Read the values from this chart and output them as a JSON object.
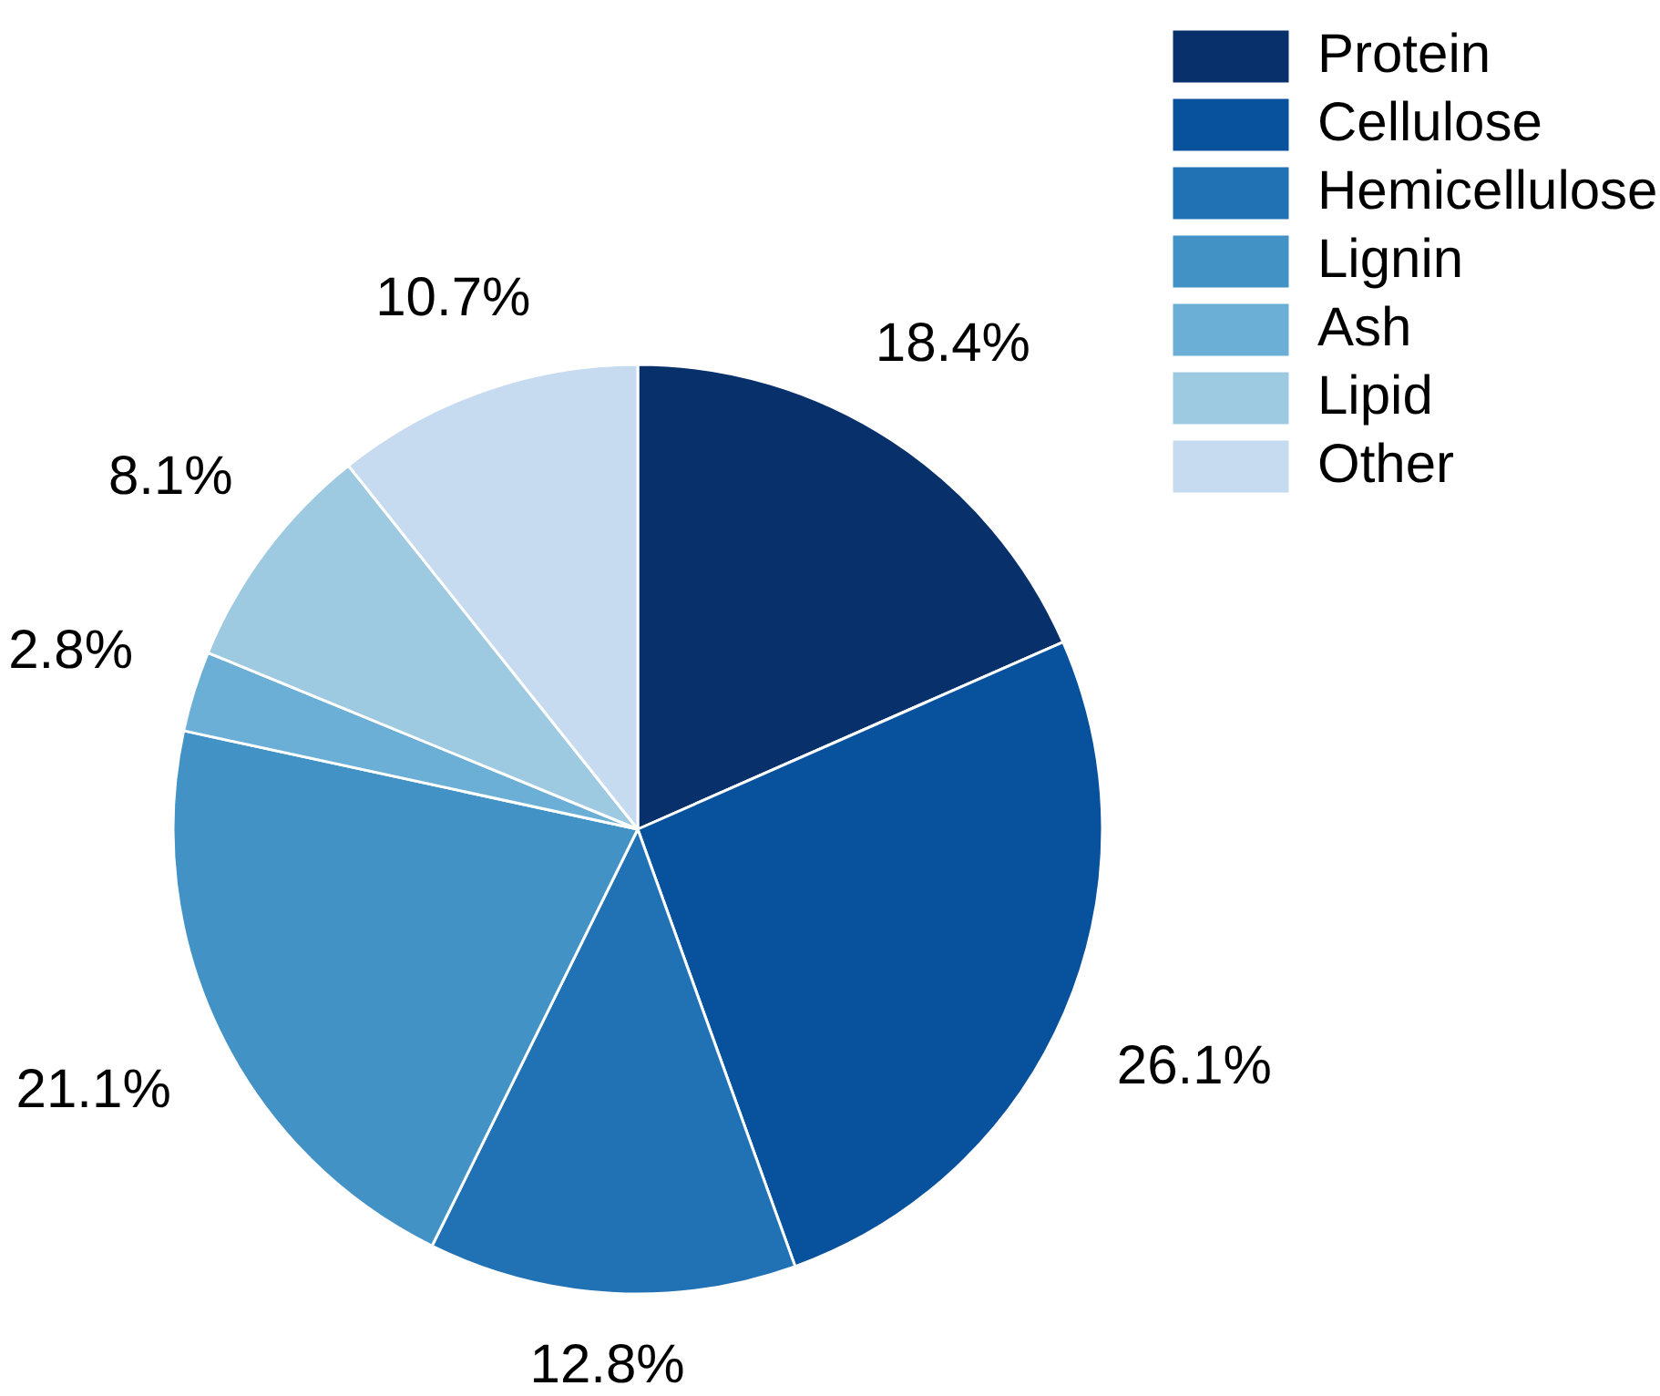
{
  "chart_data": {
    "type": "pie",
    "categories": [
      "Protein",
      "Cellulose",
      "Hemicellulose",
      "Lignin",
      "Ash",
      "Lipid",
      "Other"
    ],
    "values": [
      18.4,
      26.1,
      12.8,
      21.1,
      2.8,
      8.1,
      10.7
    ],
    "colors": [
      "#08306b",
      "#08519c",
      "#2171b5",
      "#4292c6",
      "#6baed6",
      "#9ecae1",
      "#c6dbef"
    ],
    "value_labels": [
      "18.4%",
      "26.1%",
      "12.8%",
      "21.1%",
      "2.8%",
      "8.1%",
      "10.7%"
    ],
    "legend": "top right"
  }
}
